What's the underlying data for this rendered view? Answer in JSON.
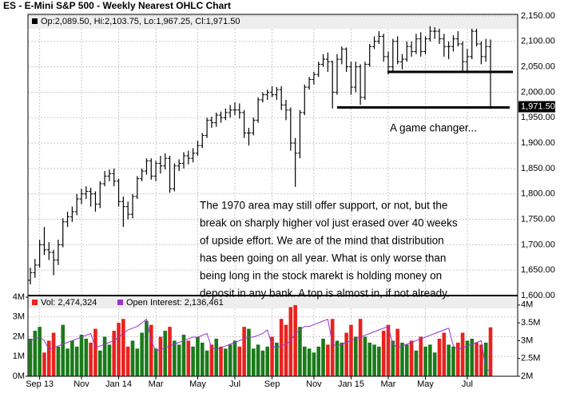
{
  "chart_data": [
    {
      "type": "ohlc",
      "title": "ES - E-Mini S&P 500 - Weekly Nearest OHLC Chart",
      "legend_text": "Op:2,089.50, Hi:2,103.75, Lo:1,967.25, Cl:1,971.50",
      "color": "#000000",
      "up_color": "#1a7a1a",
      "down_color": "#e8221e",
      "ylim": [
        1600,
        2150
      ],
      "yticks": [
        {
          "value": 1600,
          "label": "1,600.00"
        },
        {
          "value": 1650,
          "label": "1,650.00"
        },
        {
          "value": 1700,
          "label": "1,700.00"
        },
        {
          "value": 1750,
          "label": "1,750.00"
        },
        {
          "value": 1800,
          "label": "1,800.00"
        },
        {
          "value": 1850,
          "label": "1,850.00"
        },
        {
          "value": 1900,
          "label": "1,900.00"
        },
        {
          "value": 1950,
          "label": "1,950.00"
        },
        {
          "value": 2000,
          "label": "2,000.00"
        },
        {
          "value": 2050,
          "label": "2,050.00"
        },
        {
          "value": 2100,
          "label": "2,100.00"
        },
        {
          "value": 2150,
          "label": "2,150.00"
        }
      ],
      "grid": true,
      "last_price": {
        "value": 1971.5,
        "label": "1,971.50"
      },
      "levels": [
        2040,
        1970
      ],
      "callout": "A game changer...",
      "annotation_lines": [
        "The 1970 area may still offer support, or not, but the",
        "break on sharply higher vol just erased over 40 weeks",
        "of upside effort.  We are of the mind that distribution",
        "has been going on all year.  What is only worse than",
        "being long in the stock marekt is holding money on",
        "deposit in any bank.  A top is almost in, if not already."
      ],
      "open": [
        1630,
        1645,
        1660,
        1700,
        1690,
        1685,
        1670,
        1700,
        1745,
        1755,
        1765,
        1790,
        1800,
        1805,
        1800,
        1780,
        1820,
        1835,
        1840,
        1825,
        1785,
        1775,
        1760,
        1795,
        1830,
        1845,
        1865,
        1835,
        1860,
        1855,
        1870,
        1810,
        1855,
        1860,
        1875,
        1870,
        1880,
        1895,
        1915,
        1945,
        1940,
        1955,
        1950,
        1960,
        1965,
        1965,
        1960,
        1920,
        1920,
        1945,
        1985,
        1995,
        2000,
        1995,
        2005,
        1975,
        1965,
        1900,
        1880,
        1960,
        2010,
        2025,
        2035,
        2055,
        2065,
        2060,
        2000,
        2065,
        2085,
        2050,
        2010,
        2050,
        1990,
        2055,
        2090,
        2100,
        2110,
        2070,
        2050,
        2100,
        2060,
        2065,
        2090,
        2080,
        2105,
        2080,
        2105,
        2120,
        2120,
        2105,
        2090,
        2090,
        2105,
        2095,
        2060,
        2070,
        2120,
        2095,
        2070,
        2089.5
      ],
      "high": [
        1655,
        1672,
        1710,
        1735,
        1705,
        1690,
        1710,
        1752,
        1765,
        1775,
        1800,
        1810,
        1815,
        1812,
        1805,
        1825,
        1845,
        1848,
        1850,
        1830,
        1795,
        1785,
        1800,
        1835,
        1850,
        1870,
        1870,
        1865,
        1875,
        1880,
        1875,
        1860,
        1868,
        1882,
        1885,
        1890,
        1905,
        1920,
        1950,
        1952,
        1960,
        1962,
        1968,
        1975,
        1980,
        1978,
        1965,
        1930,
        1950,
        1990,
        2000,
        2005,
        2012,
        2010,
        2012,
        1985,
        1970,
        1910,
        1965,
        2015,
        2030,
        2040,
        2060,
        2075,
        2078,
        2062,
        2075,
        2090,
        2088,
        2060,
        2060,
        2055,
        2060,
        2095,
        2110,
        2120,
        2115,
        2080,
        2105,
        2110,
        2075,
        2100,
        2100,
        2115,
        2118,
        2110,
        2130,
        2128,
        2125,
        2115,
        2100,
        2112,
        2120,
        2100,
        2085,
        2125,
        2125,
        2100,
        2105,
        2103.75
      ],
      "low": [
        1622,
        1635,
        1655,
        1680,
        1670,
        1640,
        1660,
        1695,
        1735,
        1745,
        1758,
        1780,
        1790,
        1775,
        1765,
        1772,
        1815,
        1825,
        1815,
        1775,
        1735,
        1750,
        1752,
        1790,
        1825,
        1838,
        1828,
        1825,
        1840,
        1848,
        1802,
        1805,
        1845,
        1850,
        1858,
        1862,
        1875,
        1890,
        1910,
        1930,
        1932,
        1940,
        1945,
        1950,
        1955,
        1948,
        1910,
        1895,
        1915,
        1940,
        1980,
        1985,
        1990,
        1985,
        1965,
        1945,
        1885,
        1814,
        1870,
        1955,
        2005,
        2015,
        2030,
        2050,
        2040,
        1968,
        1995,
        2055,
        2040,
        1995,
        2000,
        1975,
        1985,
        2050,
        2085,
        2095,
        2060,
        2035,
        2040,
        2055,
        2045,
        2060,
        2070,
        2075,
        2070,
        2075,
        2100,
        2105,
        2095,
        2070,
        2065,
        2080,
        2090,
        2040,
        2040,
        2065,
        2090,
        2055,
        2060,
        1967.25
      ],
      "close": [
        1645,
        1660,
        1700,
        1690,
        1685,
        1670,
        1700,
        1745,
        1755,
        1765,
        1790,
        1800,
        1805,
        1800,
        1780,
        1820,
        1835,
        1840,
        1825,
        1785,
        1775,
        1760,
        1795,
        1830,
        1845,
        1865,
        1835,
        1860,
        1855,
        1870,
        1810,
        1855,
        1860,
        1875,
        1870,
        1880,
        1895,
        1915,
        1945,
        1940,
        1955,
        1950,
        1960,
        1965,
        1965,
        1960,
        1920,
        1920,
        1945,
        1985,
        1995,
        2000,
        1995,
        2005,
        1975,
        1965,
        1900,
        1880,
        1960,
        2010,
        2025,
        2035,
        2055,
        2065,
        2060,
        2000,
        2065,
        2085,
        2050,
        2010,
        2050,
        1990,
        2055,
        2090,
        2100,
        2110,
        2070,
        2050,
        2100,
        2060,
        2065,
        2090,
        2080,
        2105,
        2080,
        2105,
        2120,
        2120,
        2105,
        2090,
        2090,
        2105,
        2095,
        2060,
        2070,
        2120,
        2095,
        2070,
        2090,
        1971.5
      ]
    },
    {
      "type": "bar",
      "categories": [
        null,
        null,
        "Sep 13",
        null,
        null,
        null,
        null,
        null,
        null,
        null,
        null,
        "Nov",
        null,
        null,
        null,
        null,
        null,
        null,
        null,
        "Jan 14",
        null,
        null,
        null,
        null,
        null,
        null,
        null,
        "Mar",
        null,
        null,
        null,
        null,
        null,
        null,
        null,
        null,
        "May",
        null,
        null,
        null,
        null,
        null,
        null,
        null,
        "Jul",
        null,
        null,
        null,
        null,
        null,
        null,
        null,
        "Sep",
        null,
        null,
        null,
        null,
        null,
        null,
        null,
        null,
        "Nov",
        null,
        null,
        null,
        null,
        null,
        null,
        null,
        "Jan 15",
        null,
        null,
        null,
        null,
        null,
        null,
        null,
        "Mar",
        null,
        null,
        null,
        null,
        null,
        null,
        null,
        "May",
        null,
        null,
        null,
        null,
        null,
        null,
        null,
        null,
        "Jul",
        null,
        null,
        null,
        null,
        null
      ],
      "ylim": [
        0,
        4
      ],
      "yticks": [
        {
          "value": 0,
          "label": "0M"
        },
        {
          "value": 1,
          "label": "1M"
        },
        {
          "value": 2,
          "label": "2M"
        },
        {
          "value": 3,
          "label": "3M"
        },
        {
          "value": 4,
          "label": "4M"
        }
      ],
      "y2lim": [
        2,
        4.22
      ],
      "y2ticks": [
        {
          "value": 2,
          "label": "2M"
        },
        {
          "value": 2.5,
          "label": "2.5M"
        },
        {
          "value": 3,
          "label": "3M"
        },
        {
          "value": 3.5,
          "label": "3.5M"
        },
        {
          "value": 4,
          "label": "4M"
        }
      ],
      "series": [
        {
          "name": "Vol: 2,474,324",
          "color": "#e8221e",
          "values": [
            1.9,
            2.3,
            2.5,
            1.2,
            1.8,
            2.2,
            1.5,
            2.6,
            1.4,
            1.8,
            1.5,
            2.1,
            1.9,
            1.7,
            2.4,
            1.3,
            2.0,
            1.6,
            2.3,
            2.7,
            2.9,
            1.5,
            1.8,
            1.4,
            2.2,
            2.8,
            2.6,
            1.4,
            2.0,
            2.3,
            2.5,
            1.8,
            1.6,
            2.1,
            1.8,
            1.5,
            2.0,
            1.7,
            1.3,
            1.6,
            1.9,
            1.5,
            1.4,
            1.6,
            1.8,
            1.5,
            2.5,
            2.4,
            1.4,
            1.6,
            1.3,
            1.5,
            2.0,
            1.7,
            2.9,
            2.6,
            3.5,
            3.6,
            2.5,
            1.5,
            1.4,
            1.2,
            1.5,
            1.9,
            1.6,
            2.9,
            1.8,
            1.7,
            2.2,
            2.6,
            2.0,
            2.9,
            2.0,
            1.7,
            1.6,
            1.5,
            2.3,
            2.6,
            1.8,
            2.4,
            1.7,
            1.6,
            1.8,
            1.3,
            2.0,
            1.5,
            1.6,
            1.2,
            1.9,
            2.2,
            1.6,
            1.5,
            1.7,
            2.2,
            1.8,
            1.9,
            1.7,
            1.6,
            1.7,
            2.474324
          ]
        },
        {
          "name": "Open Interest: 2,136,461",
          "color": "#9933cc",
          "axis": "y2",
          "values": [
            3.0,
            3.05,
            3.1,
            3.0,
            2.75,
            2.8,
            2.85,
            2.9,
            2.95,
            3.0,
            3.05,
            3.1,
            3.15,
            3.2,
            2.8,
            2.85,
            2.9,
            2.95,
            3.0,
            3.1,
            3.2,
            3.3,
            3.35,
            3.4,
            3.5,
            3.6,
            3.0,
            2.7,
            2.75,
            2.8,
            2.85,
            2.9,
            2.95,
            3.0,
            3.05,
            3.1,
            3.1,
            3.15,
            3.2,
            2.8,
            2.75,
            2.8,
            2.85,
            2.9,
            2.95,
            3.0,
            3.05,
            3.1,
            3.1,
            3.15,
            3.2,
            3.3,
            2.85,
            2.8,
            2.85,
            2.9,
            3.0,
            3.2,
            3.3,
            3.4,
            3.4,
            3.45,
            3.5,
            3.55,
            3.6,
            2.9,
            2.85,
            2.9,
            2.95,
            3.0,
            3.05,
            3.1,
            3.15,
            3.2,
            3.25,
            3.3,
            3.35,
            3.4,
            2.9,
            2.8,
            2.85,
            2.9,
            2.95,
            3.0,
            3.05,
            3.1,
            3.15,
            3.2,
            3.25,
            3.3,
            3.35,
            2.85,
            2.75,
            2.8,
            2.85,
            2.9,
            2.95,
            3.0,
            2.2,
            2.136461
          ]
        }
      ]
    }
  ]
}
